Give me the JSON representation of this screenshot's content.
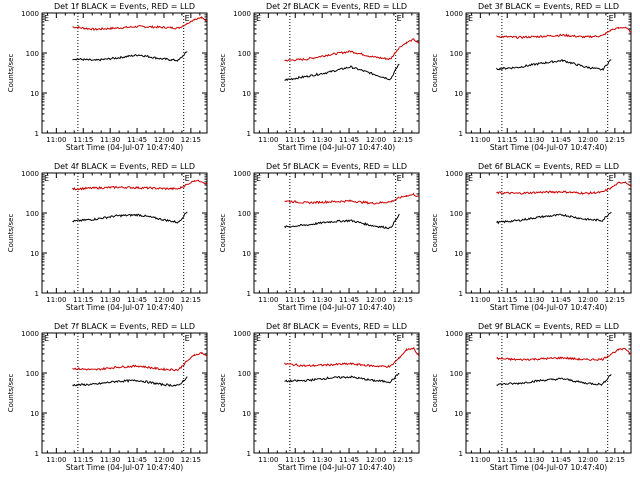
{
  "chart_data": [
    {
      "type": "line",
      "title": "Det 1f BLACK = Events, RED = LLD",
      "xlabel": "Start Time (04-Jul-07 10:47:40)",
      "ylabel": "Counts/sec",
      "yscale": "log",
      "ylim": [
        1,
        1000
      ],
      "xlim_minutes": [
        -8,
        30
      ],
      "x_ticks": [
        "11:00",
        "11:15",
        "11:30",
        "11:45",
        "12:00",
        "12:15"
      ],
      "y_ticks": [
        "1",
        "10",
        "100",
        "1000"
      ],
      "markers": [
        {
          "label": "E",
          "position": "top-left"
        },
        {
          "label": "E",
          "position": "top-right"
        }
      ],
      "series": [
        {
          "name": "LLD",
          "color": "#cc0000",
          "x": [
            0,
            5,
            10,
            15,
            20,
            24,
            26
          ],
          "values": [
            450,
            390,
            420,
            460,
            440,
            420,
            550
          ],
          "extension": {
            "x": [
              25,
              27,
              30
            ],
            "values": [
              700,
              760,
              640
            ]
          }
        },
        {
          "name": "Events",
          "color": "#000000",
          "x": [
            0,
            5,
            10,
            15,
            20,
            24,
            26
          ],
          "values": [
            72,
            65,
            75,
            90,
            72,
            65,
            110
          ]
        }
      ]
    },
    {
      "type": "line",
      "title": "Det 2f BLACK = Events, RED = LLD",
      "xlabel": "Start Time (04-Jul-07 10:47:40)",
      "ylabel": "Counts/sec",
      "yscale": "log",
      "ylim": [
        1,
        1000
      ],
      "xlim_minutes": [
        -8,
        30
      ],
      "x_ticks": [
        "11:00",
        "11:15",
        "11:30",
        "11:45",
        "12:00",
        "12:15"
      ],
      "y_ticks": [
        "1",
        "10",
        "100",
        "1000"
      ],
      "markers": [
        {
          "label": "E",
          "position": "top-left"
        },
        {
          "label": "E",
          "position": "top-right"
        }
      ],
      "series": [
        {
          "name": "LLD",
          "color": "#cc0000",
          "x": [
            0,
            5,
            10,
            15,
            20,
            24,
            26
          ],
          "values": [
            65,
            70,
            90,
            110,
            80,
            70,
            140
          ],
          "extension": {
            "x": [
              25,
              27,
              30
            ],
            "values": [
              180,
              220,
              170
            ]
          }
        },
        {
          "name": "Events",
          "color": "#000000",
          "x": [
            0,
            5,
            10,
            15,
            20,
            24,
            26
          ],
          "values": [
            21,
            26,
            33,
            45,
            30,
            22,
            55
          ]
        }
      ]
    },
    {
      "type": "line",
      "title": "Det 3f BLACK = Events, RED = LLD",
      "xlabel": "Start Time (04-Jul-07 10:47:40)",
      "ylabel": "Counts/sec",
      "yscale": "log",
      "ylim": [
        1,
        1000
      ],
      "xlim_minutes": [
        -8,
        30
      ],
      "x_ticks": [
        "11:00",
        "11:15",
        "11:30",
        "11:45",
        "12:00",
        "12:15"
      ],
      "y_ticks": [
        "1",
        "10",
        "100",
        "1000"
      ],
      "markers": [
        {
          "label": "E",
          "position": "top-left"
        },
        {
          "label": "E",
          "position": "top-right"
        }
      ],
      "series": [
        {
          "name": "LLD",
          "color": "#cc0000",
          "x": [
            0,
            5,
            10,
            15,
            20,
            24,
            26
          ],
          "values": [
            260,
            245,
            260,
            280,
            250,
            270,
            380
          ],
          "extension": {
            "x": [
              25,
              27,
              30
            ],
            "values": [
              420,
              440,
              330
            ]
          }
        },
        {
          "name": "Events",
          "color": "#000000",
          "x": [
            0,
            5,
            10,
            15,
            20,
            24,
            26
          ],
          "values": [
            40,
            44,
            55,
            65,
            45,
            38,
            70
          ]
        }
      ]
    },
    {
      "type": "line",
      "title": "Det 4f BLACK = Events, RED = LLD",
      "xlabel": "Start Time (04-Jul-07 10:47:40)",
      "ylabel": "Counts/sec",
      "yscale": "log",
      "ylim": [
        1,
        1000
      ],
      "xlim_minutes": [
        -8,
        30
      ],
      "x_ticks": [
        "11:00",
        "11:15",
        "11:30",
        "11:45",
        "12:00",
        "12:15"
      ],
      "y_ticks": [
        "1",
        "10",
        "100",
        "1000"
      ],
      "markers": [
        {
          "label": "E",
          "position": "top-left"
        },
        {
          "label": "E",
          "position": "top-right"
        }
      ],
      "series": [
        {
          "name": "LLD",
          "color": "#cc0000",
          "x": [
            0,
            5,
            10,
            15,
            20,
            24,
            26
          ],
          "values": [
            400,
            420,
            440,
            430,
            410,
            400,
            520
          ],
          "extension": {
            "x": [
              25,
              27,
              30
            ],
            "values": [
              650,
              620,
              520
            ]
          }
        },
        {
          "name": "Events",
          "color": "#000000",
          "x": [
            0,
            5,
            10,
            15,
            20,
            24,
            26
          ],
          "values": [
            62,
            70,
            85,
            90,
            70,
            58,
            110
          ]
        }
      ]
    },
    {
      "type": "line",
      "title": "Det 5f BLACK = Events, RED = LLD",
      "xlabel": "Start Time (04-Jul-07 10:47:40)",
      "ylabel": "Counts/sec",
      "yscale": "log",
      "ylim": [
        1,
        1000
      ],
      "xlim_minutes": [
        -8,
        30
      ],
      "x_ticks": [
        "11:00",
        "11:15",
        "11:30",
        "11:45",
        "12:00",
        "12:15"
      ],
      "y_ticks": [
        "1",
        "10",
        "100",
        "1000"
      ],
      "markers": [
        {
          "label": "E",
          "position": "top-left"
        },
        {
          "label": "E",
          "position": "top-right"
        }
      ],
      "series": [
        {
          "name": "LLD",
          "color": "#cc0000",
          "x": [
            0,
            5,
            10,
            15,
            20,
            24,
            26
          ],
          "values": [
            200,
            180,
            190,
            200,
            175,
            190,
            240
          ],
          "extension": {
            "x": [
              25,
              27,
              30
            ],
            "values": [
              270,
              290,
              250
            ]
          }
        },
        {
          "name": "Events",
          "color": "#000000",
          "x": [
            0,
            5,
            10,
            15,
            20,
            24,
            26
          ],
          "values": [
            45,
            50,
            60,
            65,
            48,
            42,
            90
          ]
        }
      ]
    },
    {
      "type": "line",
      "title": "Det 6f BLACK = Events, RED = LLD",
      "xlabel": "Start Time (04-Jul-07 10:47:40)",
      "ylabel": "Counts/sec",
      "yscale": "log",
      "ylim": [
        1,
        1000
      ],
      "xlim_minutes": [
        -8,
        30
      ],
      "x_ticks": [
        "11:00",
        "11:15",
        "11:30",
        "11:45",
        "12:00",
        "12:15"
      ],
      "y_ticks": [
        "1",
        "10",
        "100",
        "1000"
      ],
      "markers": [
        {
          "label": "E",
          "position": "top-left"
        },
        {
          "label": "E",
          "position": "top-right"
        }
      ],
      "series": [
        {
          "name": "LLD",
          "color": "#cc0000",
          "x": [
            0,
            5,
            10,
            15,
            20,
            24,
            26
          ],
          "values": [
            320,
            310,
            330,
            340,
            310,
            330,
            430
          ],
          "extension": {
            "x": [
              25,
              27,
              30
            ],
            "values": [
              560,
              600,
              450
            ]
          }
        },
        {
          "name": "Events",
          "color": "#000000",
          "x": [
            0,
            5,
            10,
            15,
            20,
            24,
            26
          ],
          "values": [
            58,
            65,
            80,
            90,
            70,
            65,
            110
          ]
        }
      ]
    },
    {
      "type": "line",
      "title": "Det 7f BLACK = Events, RED = LLD",
      "xlabel": "Start Time (04-Jul-07 10:47:40)",
      "ylabel": "Counts/sec",
      "yscale": "log",
      "ylim": [
        1,
        1000
      ],
      "xlim_minutes": [
        -8,
        30
      ],
      "x_ticks": [
        "11:00",
        "11:15",
        "11:30",
        "11:45",
        "12:00",
        "12:15"
      ],
      "y_ticks": [
        "1",
        "10",
        "100",
        "1000"
      ],
      "markers": [
        {
          "label": "E",
          "position": "top-left"
        },
        {
          "label": "E",
          "position": "top-right"
        }
      ],
      "series": [
        {
          "name": "LLD",
          "color": "#cc0000",
          "x": [
            0,
            5,
            10,
            15,
            20,
            24,
            26
          ],
          "values": [
            130,
            120,
            140,
            150,
            125,
            120,
            200
          ],
          "extension": {
            "x": [
              25,
              27,
              30
            ],
            "values": [
              280,
              320,
              260
            ]
          }
        },
        {
          "name": "Events",
          "color": "#000000",
          "x": [
            0,
            5,
            10,
            15,
            20,
            24,
            26
          ],
          "values": [
            50,
            52,
            62,
            65,
            52,
            48,
            80
          ]
        }
      ]
    },
    {
      "type": "line",
      "title": "Det 8f BLACK = Events, RED = LLD",
      "xlabel": "Start Time (04-Jul-07 10:47:40)",
      "ylabel": "Counts/sec",
      "yscale": "log",
      "ylim": [
        1,
        1000
      ],
      "xlim_minutes": [
        -8,
        30
      ],
      "x_ticks": [
        "11:00",
        "11:15",
        "11:30",
        "11:45",
        "12:00",
        "12:15"
      ],
      "y_ticks": [
        "1",
        "10",
        "100",
        "1000"
      ],
      "markers": [
        {
          "label": "E",
          "position": "top-left"
        },
        {
          "label": "E",
          "position": "top-right"
        }
      ],
      "series": [
        {
          "name": "LLD",
          "color": "#cc0000",
          "x": [
            0,
            5,
            10,
            15,
            20,
            24,
            26
          ],
          "values": [
            170,
            150,
            160,
            170,
            150,
            145,
            240
          ],
          "extension": {
            "x": [
              25,
              27,
              30
            ],
            "values": [
              380,
              420,
              260
            ]
          }
        },
        {
          "name": "Events",
          "color": "#000000",
          "x": [
            0,
            5,
            10,
            15,
            20,
            24,
            26
          ],
          "values": [
            62,
            65,
            75,
            80,
            65,
            60,
            100
          ]
        }
      ]
    },
    {
      "type": "line",
      "title": "Det 9f BLACK = Events, RED = LLD",
      "xlabel": "Start Time (04-Jul-07 10:47:40)",
      "ylabel": "Counts/sec",
      "yscale": "log",
      "ylim": [
        1,
        1000
      ],
      "xlim_minutes": [
        -8,
        30
      ],
      "x_ticks": [
        "11:00",
        "11:15",
        "11:30",
        "11:45",
        "12:00",
        "12:15"
      ],
      "y_ticks": [
        "1",
        "10",
        "100",
        "1000"
      ],
      "markers": [
        {
          "label": "E",
          "position": "top-left"
        },
        {
          "label": "E",
          "position": "top-right"
        }
      ],
      "series": [
        {
          "name": "LLD",
          "color": "#cc0000",
          "x": [
            0,
            5,
            10,
            15,
            20,
            24,
            26
          ],
          "values": [
            230,
            215,
            225,
            240,
            215,
            220,
            300
          ],
          "extension": {
            "x": [
              25,
              27,
              30
            ],
            "values": [
              380,
              400,
              300
            ]
          }
        },
        {
          "name": "Events",
          "color": "#000000",
          "x": [
            0,
            5,
            10,
            15,
            20,
            24,
            26
          ],
          "values": [
            52,
            55,
            65,
            72,
            56,
            52,
            95
          ]
        }
      ]
    }
  ]
}
